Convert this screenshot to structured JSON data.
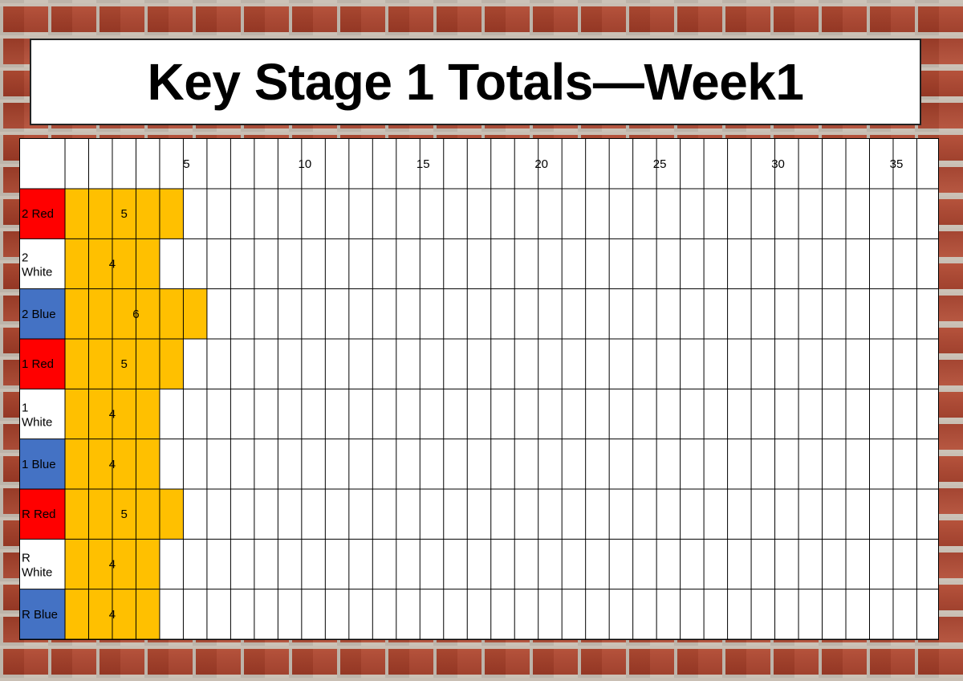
{
  "title": "Key Stage 1 Totals—Week1",
  "chart_data": {
    "type": "bar",
    "orientation": "horizontal",
    "title": "Key Stage 1 Totals—Week1",
    "categories": [
      "2 Red",
      "2 White",
      "2 Blue",
      "1 Red",
      "1 White",
      "1 Blue",
      "R Red",
      "R White",
      "R Blue"
    ],
    "values": [
      5,
      4,
      6,
      5,
      4,
      4,
      5,
      4,
      4
    ],
    "category_colors": [
      "#ff0000",
      "#ffffff",
      "#4472c4",
      "#ff0000",
      "#ffffff",
      "#4472c4",
      "#ff0000",
      "#ffffff",
      "#4472c4"
    ],
    "bar_color": "#ffc000",
    "x_ticks": [
      5,
      10,
      15,
      20,
      25,
      30,
      35
    ],
    "xlim": [
      1,
      36
    ],
    "grid": true,
    "xlabel": "",
    "ylabel": ""
  }
}
